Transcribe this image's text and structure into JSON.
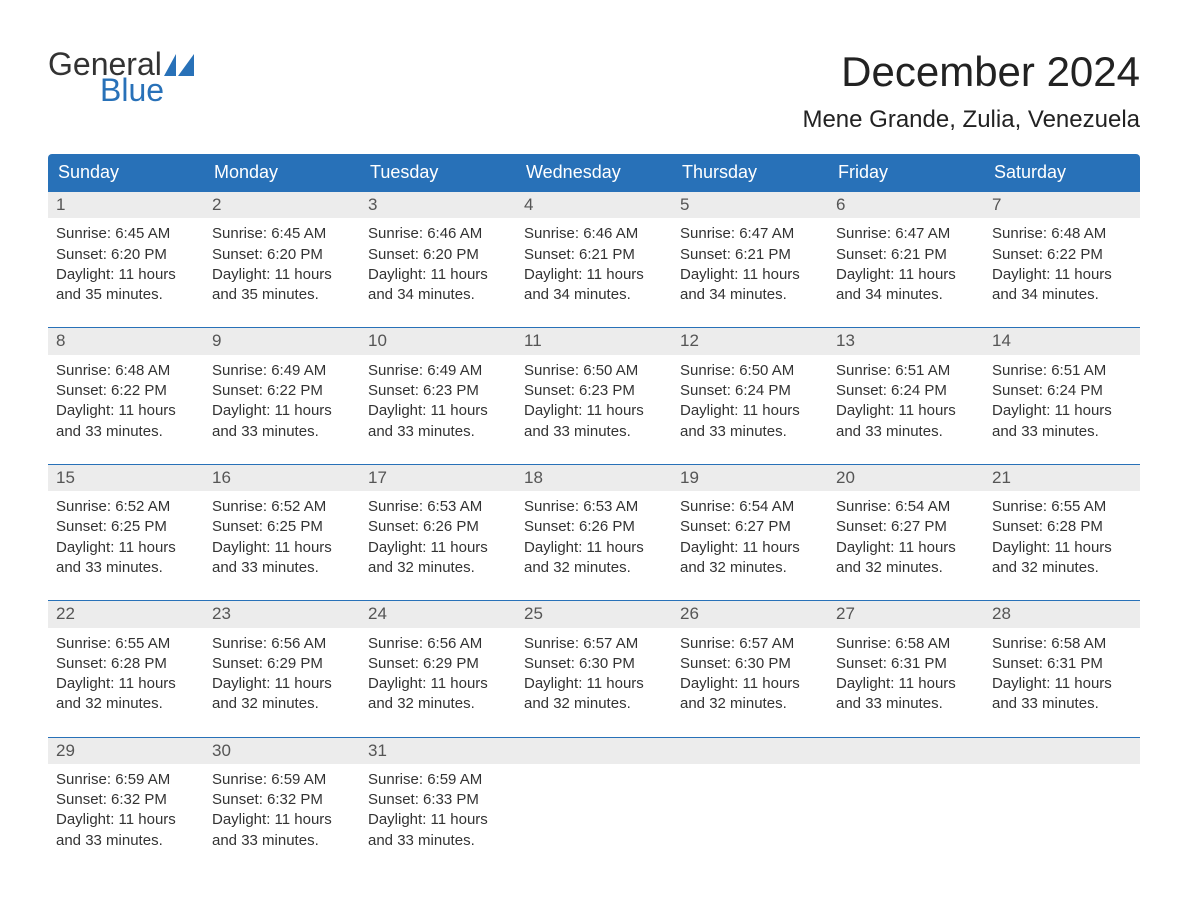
{
  "brand": {
    "general": "General",
    "blue": "Blue"
  },
  "title": "December 2024",
  "location": "Mene Grande, Zulia, Venezuela",
  "colors": {
    "header_bg": "#2871b8",
    "header_text": "#ffffff",
    "daynum_bg": "#ececec",
    "daynum_text": "#555555",
    "body_text": "#333333",
    "logo_blue": "#2871b8",
    "page_bg": "#ffffff",
    "week_border": "#2871b8"
  },
  "day_names": [
    "Sunday",
    "Monday",
    "Tuesday",
    "Wednesday",
    "Thursday",
    "Friday",
    "Saturday"
  ],
  "weeks": [
    [
      {
        "n": "1",
        "sr": "Sunrise: 6:45 AM",
        "ss": "Sunset: 6:20 PM",
        "dl1": "Daylight: 11 hours",
        "dl2": "and 35 minutes."
      },
      {
        "n": "2",
        "sr": "Sunrise: 6:45 AM",
        "ss": "Sunset: 6:20 PM",
        "dl1": "Daylight: 11 hours",
        "dl2": "and 35 minutes."
      },
      {
        "n": "3",
        "sr": "Sunrise: 6:46 AM",
        "ss": "Sunset: 6:20 PM",
        "dl1": "Daylight: 11 hours",
        "dl2": "and 34 minutes."
      },
      {
        "n": "4",
        "sr": "Sunrise: 6:46 AM",
        "ss": "Sunset: 6:21 PM",
        "dl1": "Daylight: 11 hours",
        "dl2": "and 34 minutes."
      },
      {
        "n": "5",
        "sr": "Sunrise: 6:47 AM",
        "ss": "Sunset: 6:21 PM",
        "dl1": "Daylight: 11 hours",
        "dl2": "and 34 minutes."
      },
      {
        "n": "6",
        "sr": "Sunrise: 6:47 AM",
        "ss": "Sunset: 6:21 PM",
        "dl1": "Daylight: 11 hours",
        "dl2": "and 34 minutes."
      },
      {
        "n": "7",
        "sr": "Sunrise: 6:48 AM",
        "ss": "Sunset: 6:22 PM",
        "dl1": "Daylight: 11 hours",
        "dl2": "and 34 minutes."
      }
    ],
    [
      {
        "n": "8",
        "sr": "Sunrise: 6:48 AM",
        "ss": "Sunset: 6:22 PM",
        "dl1": "Daylight: 11 hours",
        "dl2": "and 33 minutes."
      },
      {
        "n": "9",
        "sr": "Sunrise: 6:49 AM",
        "ss": "Sunset: 6:22 PM",
        "dl1": "Daylight: 11 hours",
        "dl2": "and 33 minutes."
      },
      {
        "n": "10",
        "sr": "Sunrise: 6:49 AM",
        "ss": "Sunset: 6:23 PM",
        "dl1": "Daylight: 11 hours",
        "dl2": "and 33 minutes."
      },
      {
        "n": "11",
        "sr": "Sunrise: 6:50 AM",
        "ss": "Sunset: 6:23 PM",
        "dl1": "Daylight: 11 hours",
        "dl2": "and 33 minutes."
      },
      {
        "n": "12",
        "sr": "Sunrise: 6:50 AM",
        "ss": "Sunset: 6:24 PM",
        "dl1": "Daylight: 11 hours",
        "dl2": "and 33 minutes."
      },
      {
        "n": "13",
        "sr": "Sunrise: 6:51 AM",
        "ss": "Sunset: 6:24 PM",
        "dl1": "Daylight: 11 hours",
        "dl2": "and 33 minutes."
      },
      {
        "n": "14",
        "sr": "Sunrise: 6:51 AM",
        "ss": "Sunset: 6:24 PM",
        "dl1": "Daylight: 11 hours",
        "dl2": "and 33 minutes."
      }
    ],
    [
      {
        "n": "15",
        "sr": "Sunrise: 6:52 AM",
        "ss": "Sunset: 6:25 PM",
        "dl1": "Daylight: 11 hours",
        "dl2": "and 33 minutes."
      },
      {
        "n": "16",
        "sr": "Sunrise: 6:52 AM",
        "ss": "Sunset: 6:25 PM",
        "dl1": "Daylight: 11 hours",
        "dl2": "and 33 minutes."
      },
      {
        "n": "17",
        "sr": "Sunrise: 6:53 AM",
        "ss": "Sunset: 6:26 PM",
        "dl1": "Daylight: 11 hours",
        "dl2": "and 32 minutes."
      },
      {
        "n": "18",
        "sr": "Sunrise: 6:53 AM",
        "ss": "Sunset: 6:26 PM",
        "dl1": "Daylight: 11 hours",
        "dl2": "and 32 minutes."
      },
      {
        "n": "19",
        "sr": "Sunrise: 6:54 AM",
        "ss": "Sunset: 6:27 PM",
        "dl1": "Daylight: 11 hours",
        "dl2": "and 32 minutes."
      },
      {
        "n": "20",
        "sr": "Sunrise: 6:54 AM",
        "ss": "Sunset: 6:27 PM",
        "dl1": "Daylight: 11 hours",
        "dl2": "and 32 minutes."
      },
      {
        "n": "21",
        "sr": "Sunrise: 6:55 AM",
        "ss": "Sunset: 6:28 PM",
        "dl1": "Daylight: 11 hours",
        "dl2": "and 32 minutes."
      }
    ],
    [
      {
        "n": "22",
        "sr": "Sunrise: 6:55 AM",
        "ss": "Sunset: 6:28 PM",
        "dl1": "Daylight: 11 hours",
        "dl2": "and 32 minutes."
      },
      {
        "n": "23",
        "sr": "Sunrise: 6:56 AM",
        "ss": "Sunset: 6:29 PM",
        "dl1": "Daylight: 11 hours",
        "dl2": "and 32 minutes."
      },
      {
        "n": "24",
        "sr": "Sunrise: 6:56 AM",
        "ss": "Sunset: 6:29 PM",
        "dl1": "Daylight: 11 hours",
        "dl2": "and 32 minutes."
      },
      {
        "n": "25",
        "sr": "Sunrise: 6:57 AM",
        "ss": "Sunset: 6:30 PM",
        "dl1": "Daylight: 11 hours",
        "dl2": "and 32 minutes."
      },
      {
        "n": "26",
        "sr": "Sunrise: 6:57 AM",
        "ss": "Sunset: 6:30 PM",
        "dl1": "Daylight: 11 hours",
        "dl2": "and 32 minutes."
      },
      {
        "n": "27",
        "sr": "Sunrise: 6:58 AM",
        "ss": "Sunset: 6:31 PM",
        "dl1": "Daylight: 11 hours",
        "dl2": "and 33 minutes."
      },
      {
        "n": "28",
        "sr": "Sunrise: 6:58 AM",
        "ss": "Sunset: 6:31 PM",
        "dl1": "Daylight: 11 hours",
        "dl2": "and 33 minutes."
      }
    ],
    [
      {
        "n": "29",
        "sr": "Sunrise: 6:59 AM",
        "ss": "Sunset: 6:32 PM",
        "dl1": "Daylight: 11 hours",
        "dl2": "and 33 minutes."
      },
      {
        "n": "30",
        "sr": "Sunrise: 6:59 AM",
        "ss": "Sunset: 6:32 PM",
        "dl1": "Daylight: 11 hours",
        "dl2": "and 33 minutes."
      },
      {
        "n": "31",
        "sr": "Sunrise: 6:59 AM",
        "ss": "Sunset: 6:33 PM",
        "dl1": "Daylight: 11 hours",
        "dl2": "and 33 minutes."
      },
      {
        "n": "",
        "sr": "",
        "ss": "",
        "dl1": "",
        "dl2": ""
      },
      {
        "n": "",
        "sr": "",
        "ss": "",
        "dl1": "",
        "dl2": ""
      },
      {
        "n": "",
        "sr": "",
        "ss": "",
        "dl1": "",
        "dl2": ""
      },
      {
        "n": "",
        "sr": "",
        "ss": "",
        "dl1": "",
        "dl2": ""
      }
    ]
  ]
}
